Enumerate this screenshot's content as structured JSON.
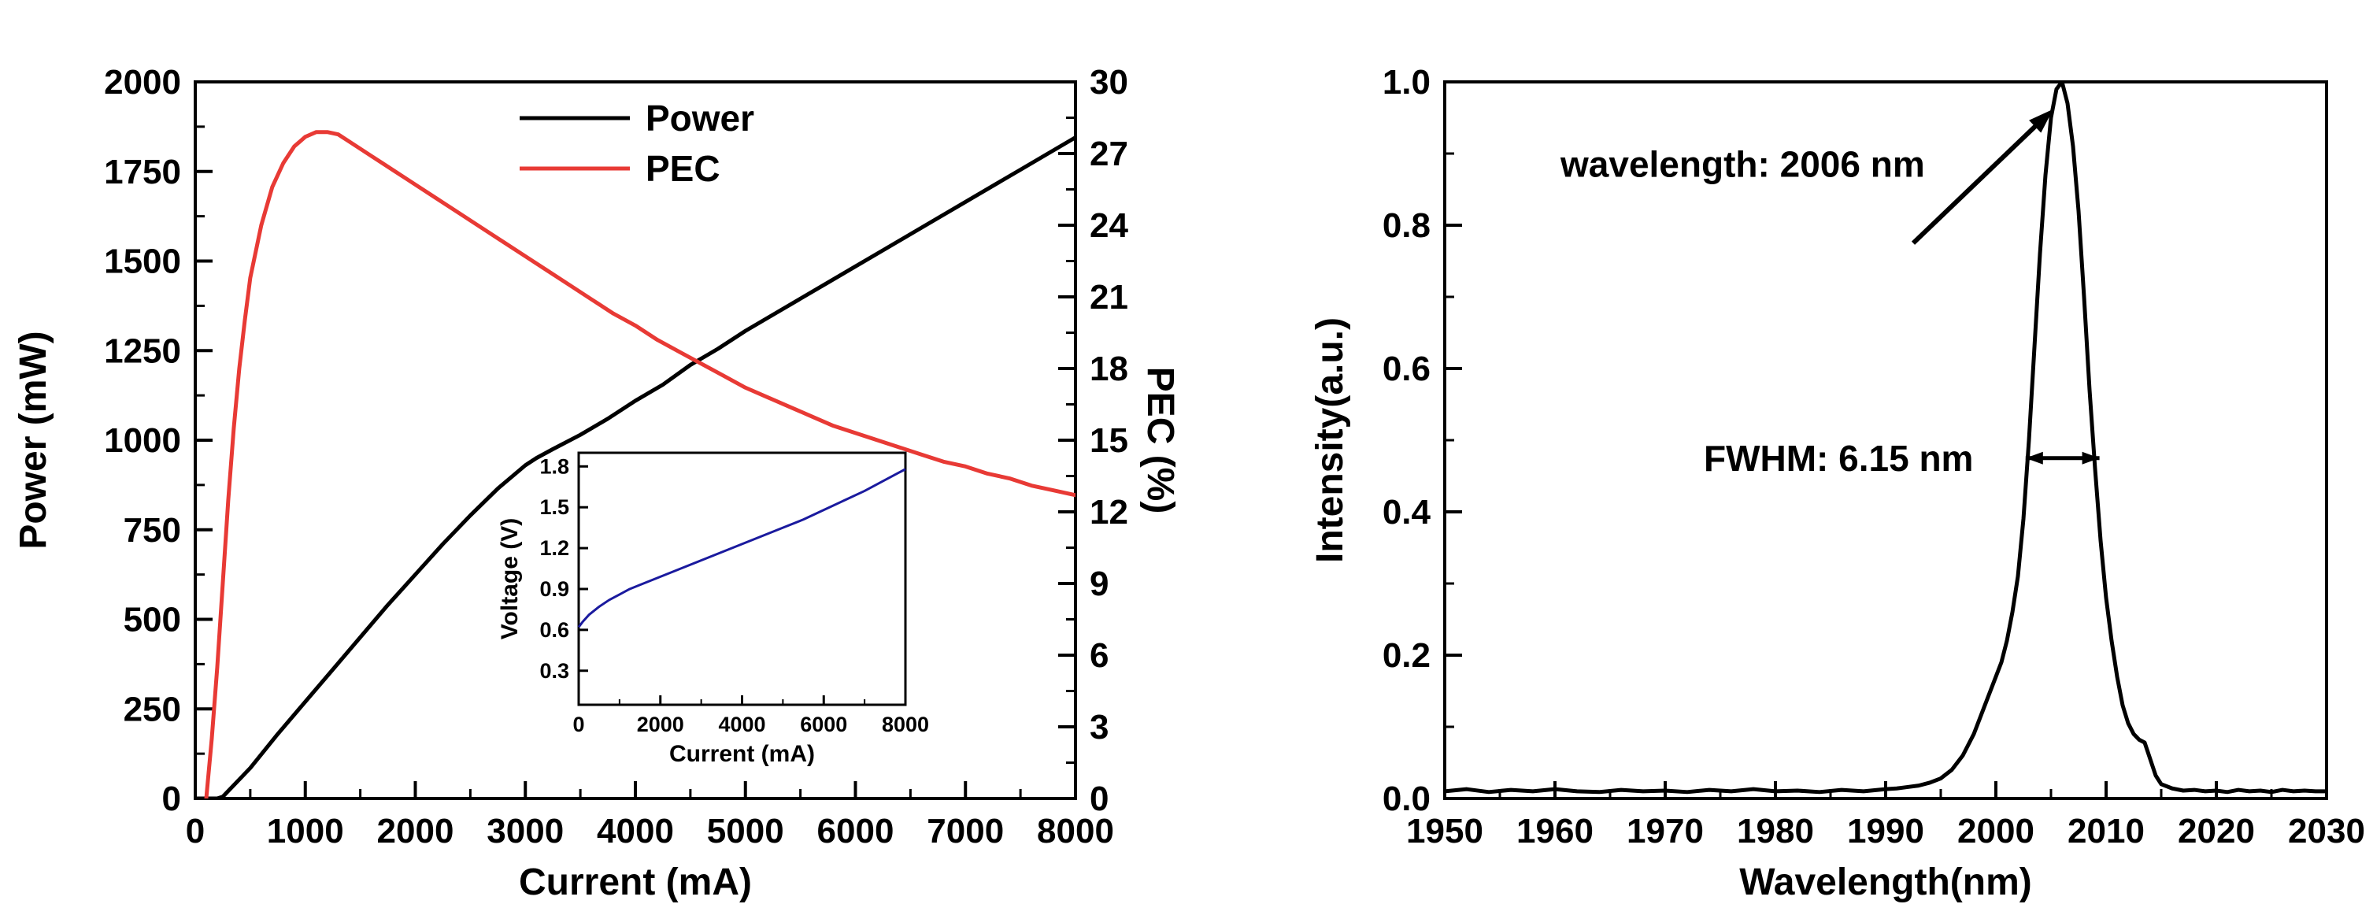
{
  "figure": {
    "background": "#ffffff"
  },
  "chart_data": [
    {
      "id": "li-pec",
      "type": "line",
      "xlabel": "Current (mA)",
      "xlim": [
        0,
        8000
      ],
      "x_ticks": [
        0,
        1000,
        2000,
        3000,
        4000,
        5000,
        6000,
        7000,
        8000
      ],
      "x_minor_step": 500,
      "x_decimals": 0,
      "axes": {
        "left": {
          "label": "Power (mW)",
          "lim": [
            0,
            2000
          ],
          "ticks": [
            0,
            250,
            500,
            750,
            1000,
            1250,
            1500,
            1750,
            2000
          ],
          "minor_step": 125,
          "decimals": 0
        },
        "right": {
          "label": "PEC (%)",
          "lim": [
            0,
            30
          ],
          "ticks": [
            0,
            3,
            6,
            9,
            12,
            15,
            18,
            21,
            24,
            27,
            30
          ],
          "minor_step": 1.5,
          "decimals": 0
        }
      },
      "legend": {
        "items": [
          {
            "label": "Power",
            "color": "#000000"
          },
          {
            "label": "PEC",
            "color": "#e83a35"
          }
        ]
      },
      "series": [
        {
          "name": "Power",
          "axis": "left",
          "color": "#000000",
          "width": 5,
          "x": [
            0,
            200,
            250,
            500,
            750,
            1000,
            1250,
            1500,
            1750,
            2000,
            2250,
            2500,
            2750,
            3000,
            3100,
            3250,
            3500,
            3750,
            4000,
            4250,
            4500,
            4750,
            5000,
            5250,
            5500,
            5750,
            6000,
            6250,
            6500,
            6750,
            7000,
            7250,
            7500,
            7750,
            8000
          ],
          "y": [
            0,
            0,
            5,
            85,
            180,
            270,
            360,
            450,
            540,
            625,
            710,
            790,
            865,
            930,
            950,
            975,
            1015,
            1060,
            1110,
            1155,
            1210,
            1255,
            1305,
            1350,
            1395,
            1440,
            1485,
            1530,
            1575,
            1620,
            1665,
            1710,
            1755,
            1800,
            1845
          ]
        },
        {
          "name": "PEC",
          "axis": "right",
          "color": "#e83a35",
          "width": 5,
          "x": [
            100,
            150,
            200,
            250,
            300,
            350,
            400,
            450,
            500,
            600,
            700,
            800,
            900,
            1000,
            1100,
            1200,
            1300,
            1400,
            1500,
            1600,
            1700,
            1800,
            1900,
            2000,
            2200,
            2400,
            2600,
            2800,
            3000,
            3200,
            3400,
            3600,
            3800,
            4000,
            4200,
            4400,
            4600,
            4800,
            5000,
            5200,
            5400,
            5600,
            5800,
            6000,
            6200,
            6400,
            6600,
            6800,
            7000,
            7200,
            7400,
            7600,
            7800,
            8000
          ],
          "y": [
            0,
            2.5,
            5.5,
            9,
            12.5,
            15.5,
            18,
            20,
            21.8,
            24,
            25.6,
            26.6,
            27.3,
            27.7,
            27.9,
            27.9,
            27.8,
            27.5,
            27.2,
            26.9,
            26.6,
            26.3,
            26,
            25.7,
            25.1,
            24.5,
            23.9,
            23.3,
            22.7,
            22.1,
            21.5,
            20.9,
            20.3,
            19.8,
            19.2,
            18.7,
            18.2,
            17.7,
            17.2,
            16.8,
            16.4,
            16,
            15.6,
            15.3,
            15,
            14.7,
            14.4,
            14.1,
            13.9,
            13.6,
            13.4,
            13.1,
            12.9,
            12.7
          ]
        }
      ],
      "inset": {
        "xlabel": "Current (mA)",
        "ylabel": "Voltage (V)",
        "xlim": [
          0,
          8000
        ],
        "ylim": [
          0.05,
          1.9
        ],
        "x_ticks": [
          0,
          2000,
          4000,
          6000,
          8000
        ],
        "x_minor_step": 1000,
        "x_decimals": 0,
        "y_ticks": [
          0.3,
          0.6,
          0.9,
          1.2,
          1.5,
          1.8
        ],
        "y_decimals": 1,
        "series": {
          "name": "Voltage",
          "color": "#1a1a9e",
          "width": 3,
          "x": [
            0,
            100,
            250,
            500,
            750,
            1000,
            1250,
            1500,
            2000,
            2500,
            3000,
            3500,
            4000,
            4500,
            5000,
            5500,
            6000,
            6500,
            7000,
            7500,
            8000
          ],
          "y": [
            0.62,
            0.66,
            0.71,
            0.77,
            0.82,
            0.86,
            0.9,
            0.93,
            0.99,
            1.05,
            1.11,
            1.17,
            1.23,
            1.29,
            1.35,
            1.41,
            1.48,
            1.55,
            1.62,
            1.7,
            1.78
          ]
        }
      }
    },
    {
      "id": "spectrum",
      "type": "line",
      "xlabel": "Wavelength(nm)",
      "ylabel": "Intensity(a.u.)",
      "xlim": [
        1950,
        2030
      ],
      "x_ticks": [
        1950,
        1960,
        1970,
        1980,
        1990,
        2000,
        2010,
        2020,
        2030
      ],
      "x_minor_step": 5,
      "x_decimals": 0,
      "ylim": [
        0,
        1.0
      ],
      "y_ticks": [
        0.0,
        0.2,
        0.4,
        0.6,
        0.8,
        1.0
      ],
      "y_minor_step": 0.1,
      "y_decimals": 1,
      "series": [
        {
          "name": "Spectrum",
          "color": "#000000",
          "width": 5,
          "x": [
            1950,
            1952,
            1954,
            1956,
            1958,
            1960,
            1962,
            1964,
            1966,
            1968,
            1970,
            1972,
            1974,
            1976,
            1978,
            1980,
            1982,
            1984,
            1986,
            1988,
            1990,
            1991,
            1992,
            1993,
            1994,
            1995,
            1996,
            1997,
            1998,
            1999,
            2000,
            2000.5,
            2001,
            2001.5,
            2002,
            2002.5,
            2003,
            2003.5,
            2004,
            2004.5,
            2005,
            2005.5,
            2006,
            2006.5,
            2007,
            2007.5,
            2008,
            2008.5,
            2009,
            2009.5,
            2010,
            2010.5,
            2011,
            2011.5,
            2012,
            2012.5,
            2013,
            2013.5,
            2014,
            2014.5,
            2015,
            2016,
            2017,
            2018,
            2019,
            2020,
            2021,
            2022,
            2023,
            2024,
            2025,
            2026,
            2027,
            2028,
            2029,
            2030
          ],
          "y": [
            0.01,
            0.013,
            0.009,
            0.012,
            0.01,
            0.013,
            0.01,
            0.009,
            0.012,
            0.01,
            0.011,
            0.009,
            0.012,
            0.01,
            0.013,
            0.01,
            0.011,
            0.009,
            0.012,
            0.01,
            0.013,
            0.014,
            0.016,
            0.018,
            0.022,
            0.028,
            0.04,
            0.06,
            0.09,
            0.13,
            0.17,
            0.19,
            0.22,
            0.26,
            0.31,
            0.39,
            0.5,
            0.63,
            0.76,
            0.87,
            0.95,
            0.99,
            1.0,
            0.97,
            0.91,
            0.82,
            0.7,
            0.57,
            0.46,
            0.36,
            0.28,
            0.22,
            0.17,
            0.13,
            0.105,
            0.09,
            0.082,
            0.078,
            0.055,
            0.032,
            0.02,
            0.014,
            0.011,
            0.012,
            0.01,
            0.011,
            0.009,
            0.012,
            0.01,
            0.011,
            0.009,
            0.012,
            0.01,
            0.011,
            0.01,
            0.01
          ]
        }
      ],
      "annotations": [
        {
          "type": "text",
          "text": "wavelength: 2006 nm",
          "x": 1960.5,
          "y": 0.885,
          "anchor": "start"
        },
        {
          "type": "arrow",
          "x1": 1992.5,
          "y1": 0.775,
          "x2": 2005.2,
          "y2": 0.962
        },
        {
          "type": "text",
          "text": "FWHM: 6.15 nm",
          "x": 1973.5,
          "y": 0.475,
          "anchor": "start"
        },
        {
          "type": "doublearrow",
          "x1": 2002.7,
          "y1": 0.475,
          "x2": 2009.4,
          "y2": 0.475
        }
      ]
    }
  ]
}
